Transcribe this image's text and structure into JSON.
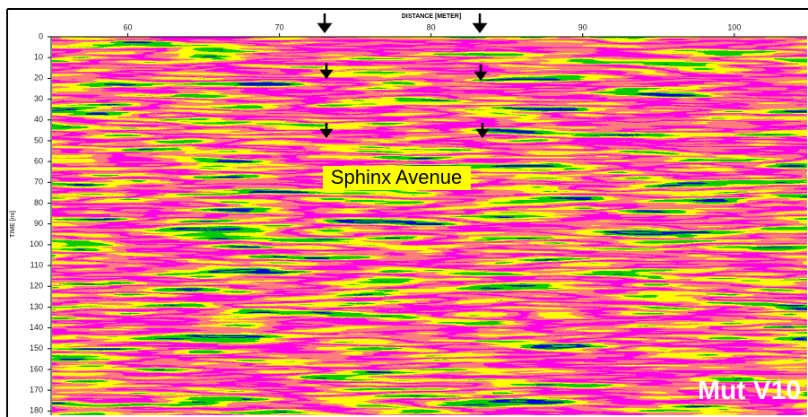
{
  "chart_data": {
    "type": "radargram",
    "xlabel": "DISTANCE [METER]",
    "ylabel": "TIME [ns]",
    "xlim": [
      55,
      104.8
    ],
    "xticks": [
      60,
      70,
      80,
      90,
      100
    ],
    "ylim": [
      0,
      182
    ],
    "yticks": [
      0,
      10,
      20,
      30,
      40,
      50,
      60,
      70,
      80,
      90,
      100,
      110,
      120,
      130,
      140,
      150,
      160,
      170,
      180
    ],
    "annotations": [
      "Sphinx Avenue",
      "Mut V10"
    ]
  }
}
